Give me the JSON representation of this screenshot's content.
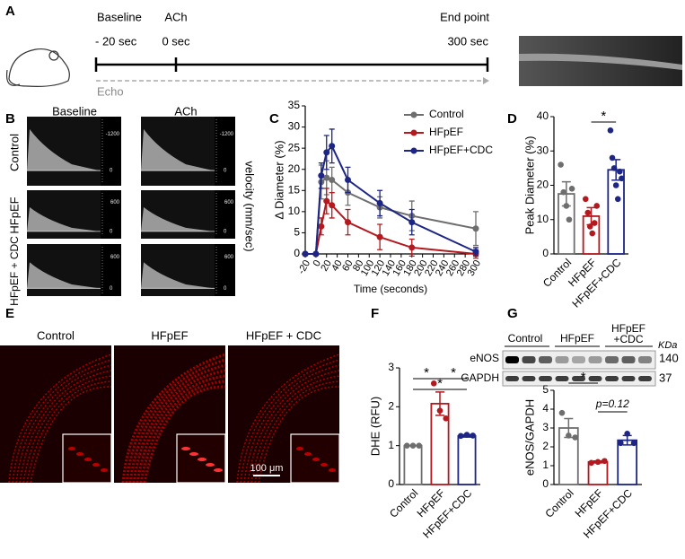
{
  "panel_labels": [
    "A",
    "B",
    "C",
    "D",
    "E",
    "F",
    "G"
  ],
  "panel_a": {
    "baseline": "Baseline",
    "baseline_time": "- 20 sec",
    "ach": "ACh",
    "ach_time": "0 sec",
    "end": "End point",
    "end_time": "300 sec",
    "echo": "Echo"
  },
  "panel_b": {
    "columns": [
      "Baseline",
      "ACh"
    ],
    "rows": [
      "Control",
      "HFpEF",
      "HFpEF + CDC"
    ],
    "axis_label": "velocity (mm/sec)",
    "scale_labels": [
      [
        "-1200",
        "0"
      ],
      [
        "600",
        "0"
      ],
      [
        "600",
        "0"
      ]
    ]
  },
  "panel_e": {
    "columns": [
      "Control",
      "HFpEF",
      "HFpEF + CDC"
    ],
    "scale_bar": "100 μm"
  },
  "panel_g_blot": {
    "groups": [
      "Control",
      "HFpEF"
    ],
    "group3": [
      "HFpEF",
      "+CDC"
    ],
    "unit": "KDa",
    "proteins": [
      "eNOS",
      "GAPDH"
    ],
    "sizes": [
      "140",
      "37"
    ]
  },
  "chart_data": [
    {
      "type": "line",
      "xlabel": "Time (seconds)",
      "ylabel": "Δ Diameter (%)",
      "x": [
        -20,
        0,
        10,
        20,
        30,
        60,
        120,
        180,
        300
      ],
      "xlim": [
        -20,
        300
      ],
      "xticks": [
        -20,
        0,
        20,
        40,
        60,
        80,
        100,
        120,
        140,
        160,
        180,
        200,
        220,
        240,
        260,
        280,
        300
      ],
      "ylim": [
        0,
        35
      ],
      "yticks": [
        0,
        5,
        10,
        15,
        20,
        25,
        30,
        35
      ],
      "series": [
        {
          "name": "Control",
          "color": "#6e6e6e",
          "values": [
            0,
            0,
            17,
            18,
            17.5,
            14.5,
            11,
            9,
            6
          ],
          "errors": [
            0,
            0,
            4,
            4,
            3,
            3,
            2.5,
            3.5,
            4
          ]
        },
        {
          "name": "HFpEF",
          "color": "#b3191e",
          "values": [
            0,
            0,
            6.5,
            12.5,
            11.5,
            7.5,
            4,
            1.5,
            0
          ],
          "errors": [
            0,
            0,
            2,
            3,
            3,
            3,
            3,
            2,
            1
          ]
        },
        {
          "name": "HFpEF+CDC",
          "color": "#1d2585",
          "values": [
            0,
            0,
            18.5,
            24,
            25.5,
            17.5,
            12,
            7.5,
            0.5
          ],
          "errors": [
            0,
            0,
            3,
            4,
            4,
            3,
            3,
            3,
            1
          ]
        }
      ]
    },
    {
      "type": "bar",
      "ylabel": "Peak Diameter (%)",
      "categories": [
        "Control",
        "HFpEF",
        "HFpEF+CDC"
      ],
      "colors": [
        "#6e6e6e",
        "#b3191e",
        "#1d2585"
      ],
      "values": [
        17.5,
        11,
        24.5
      ],
      "errors": [
        3.5,
        2.5,
        3
      ],
      "points": [
        [
          26,
          18,
          14,
          10,
          19
        ],
        [
          16,
          12,
          8,
          6,
          9,
          14
        ],
        [
          36,
          28,
          25,
          20,
          16,
          24,
          22
        ]
      ],
      "ylim": [
        0,
        40
      ],
      "yticks": [
        0,
        10,
        20,
        30,
        40
      ],
      "annotations": [
        "*"
      ]
    },
    {
      "type": "bar",
      "ylabel": "DHE (RFU)",
      "categories": [
        "Control",
        "HFpEF",
        "HFpEF+CDC"
      ],
      "colors": [
        "#6e6e6e",
        "#b3191e",
        "#1d2585"
      ],
      "values": [
        1,
        2.08,
        1.25
      ],
      "errors": [
        0,
        0.3,
        0.03
      ],
      "points": [
        [
          1,
          1,
          1
        ],
        [
          2.6,
          1.9,
          1.7
        ],
        [
          1.25,
          1.28,
          1.26
        ]
      ],
      "ylim": [
        0,
        3
      ],
      "yticks": [
        0,
        1,
        2,
        3
      ],
      "annotations": [
        "*",
        "*",
        "*"
      ]
    },
    {
      "type": "bar",
      "ylabel": "eNOS/GAPDH",
      "categories": [
        "Control",
        "HFpEF",
        "HFpEF+CDC"
      ],
      "colors": [
        "#6e6e6e",
        "#b3191e",
        "#1d2585"
      ],
      "values": [
        3,
        1.2,
        2.35
      ],
      "errors": [
        0.5,
        0.05,
        0.25
      ],
      "points": [
        [
          3.8,
          2.6,
          2.5
        ],
        [
          1.15,
          1.2,
          1.25
        ],
        [
          2.2,
          2.7,
          2.2
        ]
      ],
      "ylim": [
        0,
        5
      ],
      "yticks": [
        0,
        1,
        2,
        3,
        4,
        5
      ],
      "annotations": [
        "*",
        "p=0.12"
      ]
    }
  ]
}
